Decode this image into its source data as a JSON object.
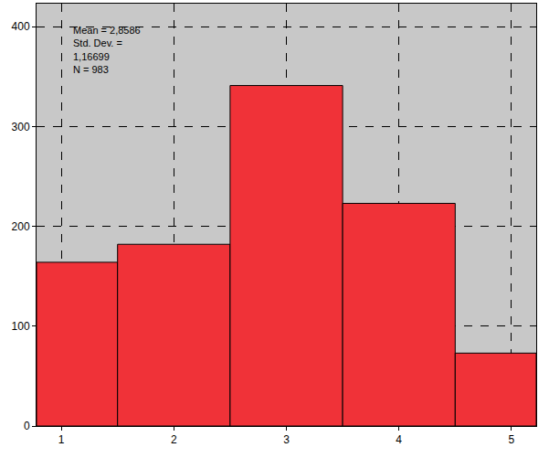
{
  "chart_data": {
    "type": "histogram",
    "bins": [
      0.78,
      1.5,
      2.5,
      3.5,
      4.5,
      5.22
    ],
    "values": [
      164,
      182,
      341,
      223,
      73
    ],
    "color": "#f03238",
    "xlim": [
      0.78,
      5.22
    ],
    "xticks": [
      1,
      2,
      3,
      4,
      5
    ],
    "ylim": [
      0,
      423
    ],
    "yticks": [
      0,
      100,
      200,
      300,
      400
    ],
    "grid": true,
    "annotations": [
      "Mean = 2,8586",
      "Std. Dev. =",
      "1,16699",
      "N = 983"
    ]
  }
}
